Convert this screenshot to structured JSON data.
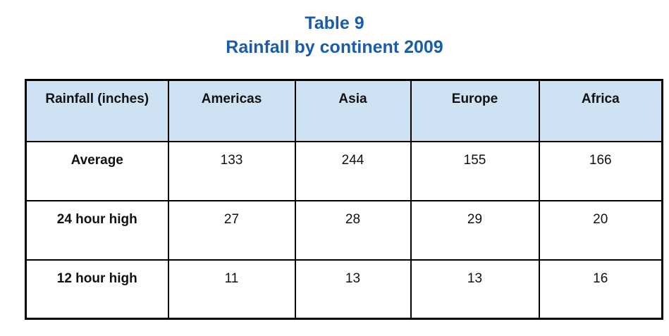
{
  "title": {
    "line1": "Table 9",
    "line2": "Rainfall by continent 2009"
  },
  "colors": {
    "title_text": "#1a5ca8",
    "header_bg": "#cfe2f3",
    "border": "#000000",
    "cell_bg": "#ffffff"
  },
  "table": {
    "columns": [
      "Rainfall (inches)",
      "Americas",
      "Asia",
      "Europe",
      "Africa"
    ],
    "rows": [
      {
        "label": "Average",
        "values": [
          "133",
          "244",
          "155",
          "166"
        ]
      },
      {
        "label": "24 hour high",
        "values": [
          "27",
          "28",
          "29",
          "20"
        ]
      },
      {
        "label": "12 hour high",
        "values": [
          "11",
          "13",
          "13",
          "16"
        ]
      }
    ]
  },
  "chart_data": {
    "type": "table",
    "title": "Table 9",
    "subtitle": "Rainfall by continent 2009",
    "row_header": "Rainfall (inches)",
    "categories": [
      "Americas",
      "Asia",
      "Europe",
      "Africa"
    ],
    "series": [
      {
        "name": "Average",
        "values": [
          133,
          244,
          155,
          166
        ]
      },
      {
        "name": "24 hour high",
        "values": [
          27,
          28,
          29,
          20
        ]
      },
      {
        "name": "12 hour high",
        "values": [
          11,
          13,
          13,
          16
        ]
      }
    ],
    "units": "inches",
    "layout": "header row shaded light blue, black grid borders, values center-aligned top"
  }
}
